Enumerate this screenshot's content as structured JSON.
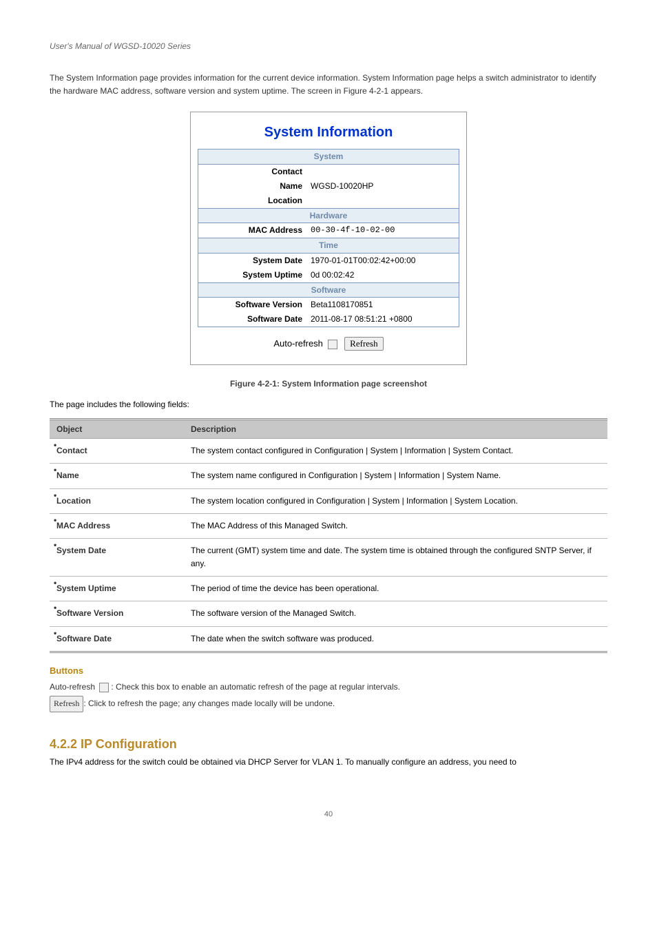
{
  "header": {
    "left": "User's Manual of WGSD-10020 Series",
    "right": ""
  },
  "intro": "The System Information page provides information for the current device information. System Information page helps a switch administrator to identify the hardware MAC address, software version and system uptime. The screen in Figure 4-2-1 appears.",
  "screenshot": {
    "title": "System Information",
    "sections": [
      {
        "name": "System",
        "rows": [
          {
            "label": "Contact",
            "value": ""
          },
          {
            "label": "Name",
            "value": "WGSD-10020HP"
          },
          {
            "label": "Location",
            "value": ""
          }
        ]
      },
      {
        "name": "Hardware",
        "rows": [
          {
            "label": "MAC Address",
            "value": "00-30-4f-10-02-00",
            "mono": true
          }
        ]
      },
      {
        "name": "Time",
        "rows": [
          {
            "label": "System Date",
            "value": "1970-01-01T00:02:42+00:00"
          },
          {
            "label": "System Uptime",
            "value": "0d 00:02:42"
          }
        ]
      },
      {
        "name": "Software",
        "rows": [
          {
            "label": "Software Version",
            "value": "Beta1108170851"
          },
          {
            "label": "Software Date",
            "value": "2011-08-17 08:51:21 +0800"
          }
        ]
      }
    ],
    "auto_refresh_label": "Auto-refresh",
    "refresh_btn": "Refresh"
  },
  "figure_caption": "Figure 4-2-1: System Information page screenshot",
  "table_intro": "The page includes the following fields:",
  "desc_table": {
    "headers": [
      "Object",
      "Description"
    ],
    "rows": [
      {
        "obj": "Contact",
        "desc": "The system contact configured in Configuration | System | Information | System Contact."
      },
      {
        "obj": "Name",
        "desc": "The system name configured in Configuration | System | Information | System Name."
      },
      {
        "obj": "Location",
        "desc": "The system location configured in Configuration | System | Information | System Location."
      },
      {
        "obj": "MAC Address",
        "desc": "The MAC Address of this Managed Switch."
      },
      {
        "obj": "System Date",
        "desc": "The current (GMT) system time and date. The system time is obtained through the configured SNTP Server, if any."
      },
      {
        "obj": "System Uptime",
        "desc": "The period of time the device has been operational."
      },
      {
        "obj": "Software Version",
        "desc": "The software version of the Managed Switch."
      },
      {
        "obj": "Software Date",
        "desc": "The date when the switch software was produced."
      }
    ]
  },
  "buttons_heading": "Buttons",
  "auto_refresh_line_prefix": "Auto-refresh",
  "auto_refresh_line_suffix": ": Check this box to enable an automatic refresh of the page at regular intervals.",
  "refresh_line_prefix": "",
  "refresh_line_suffix": ": Click to refresh the page; any changes made locally will be undone.",
  "next_section": "4.2.2 IP Configuration",
  "next_intro": "The IPv4 address for the switch could be obtained via DHCP Server for VLAN 1. To manually configure an address, you need to",
  "footer": "40"
}
